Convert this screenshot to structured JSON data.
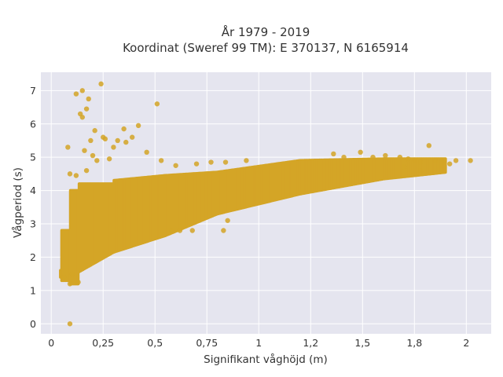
{
  "chart_data": {
    "type": "scatter",
    "title": "År 1979 - 2019",
    "subtitle": "Koordinat (Sweref 99 TM): E 370137, N 6165914",
    "xlabel": "Signifikant våghöjd (m)",
    "ylabel": "Vågperiod (s)",
    "xlim": [
      -0.05,
      2.12
    ],
    "ylim": [
      -0.3,
      7.55
    ],
    "x_ticks": [
      0,
      0.25,
      0.5,
      0.75,
      1,
      1.25,
      1.5,
      1.75,
      2
    ],
    "x_tick_labels": [
      "0",
      "0,25",
      "0,5",
      "0,75",
      "1",
      "1,2",
      "1,5",
      "1,8",
      "2"
    ],
    "y_ticks": [
      0,
      1,
      2,
      3,
      4,
      5,
      6,
      7
    ],
    "y_tick_labels": [
      "0",
      "1",
      "2",
      "3",
      "4",
      "5",
      "6",
      "7"
    ],
    "grid": true,
    "background_color": "#e5e5ef",
    "marker_color": "#d4a526",
    "series": [
      {
        "points": [
          [
            0.09,
            0.0
          ],
          [
            0.08,
            5.3
          ],
          [
            0.12,
            6.9
          ],
          [
            0.15,
            7.0
          ],
          [
            0.18,
            6.75
          ],
          [
            0.24,
            7.2
          ],
          [
            0.14,
            6.3
          ],
          [
            0.15,
            6.2
          ],
          [
            0.17,
            6.45
          ],
          [
            0.51,
            6.6
          ],
          [
            0.19,
            5.5
          ],
          [
            0.21,
            5.8
          ],
          [
            0.25,
            5.6
          ],
          [
            0.26,
            5.55
          ],
          [
            0.35,
            5.85
          ],
          [
            0.42,
            5.95
          ],
          [
            0.39,
            5.6
          ],
          [
            0.32,
            5.5
          ],
          [
            0.3,
            5.3
          ],
          [
            0.36,
            5.45
          ],
          [
            0.46,
            5.15
          ],
          [
            0.16,
            5.2
          ],
          [
            0.2,
            5.05
          ],
          [
            0.28,
            4.95
          ],
          [
            0.09,
            4.5
          ],
          [
            0.12,
            4.45
          ],
          [
            0.17,
            4.6
          ],
          [
            0.22,
            4.9
          ],
          [
            0.53,
            4.9
          ],
          [
            0.6,
            4.75
          ],
          [
            0.7,
            4.8
          ],
          [
            0.77,
            4.85
          ],
          [
            0.84,
            4.85
          ],
          [
            0.94,
            4.9
          ],
          [
            1.36,
            5.1
          ],
          [
            1.41,
            5.0
          ],
          [
            1.49,
            5.15
          ],
          [
            1.55,
            5.0
          ],
          [
            1.61,
            5.05
          ],
          [
            1.68,
            5.0
          ],
          [
            1.72,
            4.95
          ],
          [
            1.75,
            4.9
          ],
          [
            1.78,
            4.85
          ],
          [
            1.82,
            5.35
          ],
          [
            1.85,
            4.9
          ],
          [
            1.89,
            4.9
          ],
          [
            1.95,
            4.9
          ],
          [
            2.02,
            4.9
          ],
          [
            1.92,
            4.8
          ],
          [
            1.78,
            4.6
          ],
          [
            1.7,
            4.7
          ],
          [
            0.58,
            2.8
          ],
          [
            0.62,
            2.8
          ],
          [
            0.68,
            2.8
          ],
          [
            0.83,
            2.8
          ],
          [
            0.85,
            3.1
          ],
          [
            0.1,
            1.5
          ],
          [
            0.06,
            1.4
          ],
          [
            0.09,
            1.2
          ],
          [
            0.13,
            1.25
          ]
        ]
      }
    ]
  }
}
